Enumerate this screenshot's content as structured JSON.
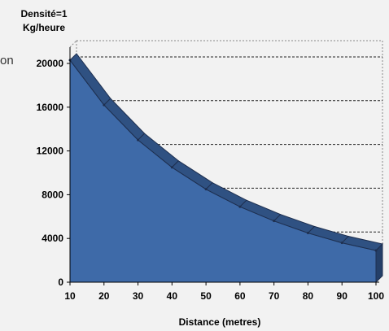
{
  "stray_text": "on",
  "chart_data": {
    "type": "area",
    "ylabel_line1": "Densité=1",
    "ylabel_line2": "Kg/heure",
    "xlabel": "Distance (metres)",
    "x": [
      10,
      20,
      30,
      40,
      50,
      60,
      70,
      80,
      90,
      100
    ],
    "y": [
      20300,
      16200,
      13000,
      10500,
      8500,
      6900,
      5600,
      4500,
      3600,
      2900
    ],
    "x_ticks": [
      "10",
      "20",
      "30",
      "40",
      "50",
      "60",
      "70",
      "80",
      "90",
      "100"
    ],
    "y_ticks": [
      "0",
      "4000",
      "8000",
      "12000",
      "16000",
      "20000"
    ],
    "xlim": [
      10,
      100
    ],
    "ylim": [
      0,
      20000
    ],
    "style": "3d",
    "grid": "horizontal dashed",
    "colors": {
      "fill": "#3e6aa8",
      "top": "#2f5182",
      "edge": "#1e2f4f",
      "side": "#243f68"
    }
  }
}
